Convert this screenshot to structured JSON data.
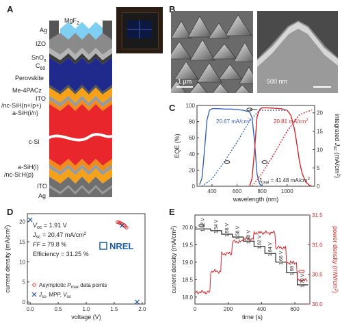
{
  "panels": {
    "a": "A",
    "b": "B",
    "c": "C",
    "d": "D",
    "e": "E"
  },
  "panel_a": {
    "layers": [
      "Ag",
      "MgF",
      "2",
      "IZO",
      "SnO",
      "x",
      "C",
      "60",
      "Perovskite",
      "Me-4PACz",
      "ITO",
      "/nc-SiH(n+/p+)",
      "a-SiH(i/n)",
      "c-Si",
      "a-SiH(i)",
      "/nc-Si:H(p)",
      "ITO",
      "Ag"
    ],
    "colors": {
      "perovskite": "#1f2a8c",
      "csi": "#e8262c",
      "ito": "#f5a11a",
      "metal": "#7b7b7b",
      "mgf2": "#7ecff2"
    }
  },
  "panel_b": {
    "scale_left": "1 μm",
    "scale_right": "500 nm"
  },
  "chart_c": {
    "type": "line",
    "xlabel": "wavelength (nm)",
    "ylabel": "EQE (%)",
    "ylabel2_a": "integrated ",
    "ylabel2_b": "J",
    "ylabel2_c": "sc",
    "ylabel2_d": " (mA/cm",
    "ylabel2_e": "2",
    "ylabel2_f": ")",
    "xticks": [
      "400",
      "600",
      "800",
      "1000"
    ],
    "yticks": [
      "0",
      "20",
      "40",
      "60",
      "80",
      "100"
    ],
    "y2ticks": [
      "0",
      "5",
      "10",
      "15",
      "20"
    ],
    "ann_blue_a": "20.67 mA/cm",
    "ann_blue_b": "2",
    "ann_red_a": "20.81 mA/cm",
    "ann_red_b": "2",
    "ann_total_a": "J",
    "ann_total_b": "total",
    "ann_total_c": " = 41.48 mA/cm",
    "ann_total_d": "2",
    "series": [
      {
        "name": "perovskite EQE",
        "color": "#3a62b8",
        "x": [
          300,
          320,
          340,
          360,
          380,
          400,
          450,
          500,
          550,
          600,
          650,
          700,
          720,
          740,
          760,
          780,
          800
        ],
        "y": [
          2,
          10,
          45,
          82,
          94,
          96,
          96,
          95.5,
          95.5,
          95,
          94,
          92,
          85,
          55,
          15,
          3,
          0
        ]
      },
      {
        "name": "c-Si EQE",
        "color": "#d8262a",
        "x": [
          700,
          720,
          740,
          760,
          780,
          800,
          850,
          900,
          950,
          1000,
          1030,
          1060,
          1080,
          1100,
          1120,
          1150,
          1180,
          1200
        ],
        "y": [
          0,
          10,
          45,
          86,
          95,
          97,
          97,
          96.5,
          96,
          94,
          88,
          70,
          50,
          30,
          16,
          5,
          1,
          0
        ]
      },
      {
        "name": "perovskite integrated Jsc",
        "color": "#3a62b8",
        "dashed": true,
        "axis": "right",
        "x": [
          320,
          400,
          500,
          600,
          700,
          780,
          800,
          1000
        ],
        "y": [
          0,
          2,
          6.8,
          12,
          17.8,
          20.67,
          20.67,
          20.67
        ]
      },
      {
        "name": "c-Si integrated Jsc",
        "color": "#d8262a",
        "dashed": true,
        "axis": "right",
        "x": [
          720,
          800,
          900,
          1000,
          1100,
          1200
        ],
        "y": [
          0,
          3.5,
          9,
          15,
          19.5,
          20.81
        ]
      }
    ],
    "xlim": [
      280,
      1220
    ],
    "ylim": [
      0,
      100
    ],
    "y2lim": [
      0,
      22
    ]
  },
  "chart_d": {
    "type": "scatter",
    "xlabel": "voltage (V)",
    "ylabel": "current density (mA/cm",
    "ylabel_sup": "2",
    "ylabel_end": ")",
    "xticks": [
      "0.0",
      "0.5",
      "1.0",
      "1.5",
      "2.0"
    ],
    "yticks": [
      "0",
      "5",
      "10",
      "15",
      "20"
    ],
    "voc_a": "V",
    "voc_b": "oc",
    "voc_c": " = 1.91 V",
    "jsc_a": "J",
    "jsc_b": "sc",
    "jsc_c": " = 20.47 mA/cm",
    "jsc_d": "2",
    "ff_a": "FF",
    "ff_b": " = 79.8 %",
    "eff": "Efficiency = 31.25 %",
    "logo": "NREL",
    "legend_circle_a": "Asymptotic ",
    "legend_circle_b": "P",
    "legend_circle_c": "max",
    "legend_circle_d": " data points",
    "legend_x_a": "J",
    "legend_x_b": "sc",
    "legend_x_c": ", MPP, ",
    "legend_x_d": "V",
    "legend_x_e": "oc",
    "circle_points": {
      "x": [
        1.56,
        1.58,
        1.6,
        1.62,
        1.64,
        1.66,
        1.68,
        1.7,
        1.72
      ],
      "y": [
        19.9,
        19.8,
        19.7,
        19.6,
        19.45,
        19.3,
        19.1,
        18.8,
        18.5
      ]
    },
    "x_points": {
      "x": [
        0.0,
        1.64,
        1.91
      ],
      "y": [
        20.47,
        19.05,
        0.0
      ]
    },
    "xlim": [
      -0.05,
      2.05
    ],
    "ylim": [
      -0.5,
      22
    ]
  },
  "chart_e": {
    "type": "line",
    "xlabel": "time (s)",
    "ylabel": "current density (mA/cm",
    "ylabel_sup": "2",
    "ylabel_end": ")",
    "ylabel2": "power density (mW/cm",
    "ylabel2_sup": "2",
    "ylabel2_end": ")",
    "xticks": [
      "0",
      "200",
      "400",
      "600"
    ],
    "yticks": [
      "18.0",
      "18.5",
      "19.0",
      "19.5",
      "20.0"
    ],
    "y2ticks": [
      "30.0",
      "30.5",
      "31.0",
      "31.5"
    ],
    "step_labels": [
      "1.52 V",
      "1.54 V",
      "1.56 V",
      "1.58 V",
      "1.60 V",
      "1.62 V",
      "1.64 V",
      "1.66 V",
      "1.68 V",
      "1.70 V"
    ],
    "current_steps": {
      "t": [
        0,
        95,
        160,
        225,
        290,
        355,
        420,
        485,
        550,
        615,
        680
      ],
      "j": [
        19.95,
        19.9,
        19.8,
        19.72,
        19.6,
        19.45,
        19.25,
        19.0,
        18.7,
        18.35
      ]
    },
    "power_steps": {
      "t": [
        0,
        95,
        160,
        225,
        290,
        355,
        420,
        485,
        550,
        615,
        680
      ],
      "p": [
        30.2,
        30.55,
        30.85,
        31.05,
        31.1,
        31.2,
        31.2,
        30.95,
        30.7,
        30.4
      ]
    },
    "xlim": [
      0,
      690
    ],
    "ylim": [
      17.8,
      20.35
    ],
    "y2lim": [
      30.0,
      31.5
    ]
  }
}
